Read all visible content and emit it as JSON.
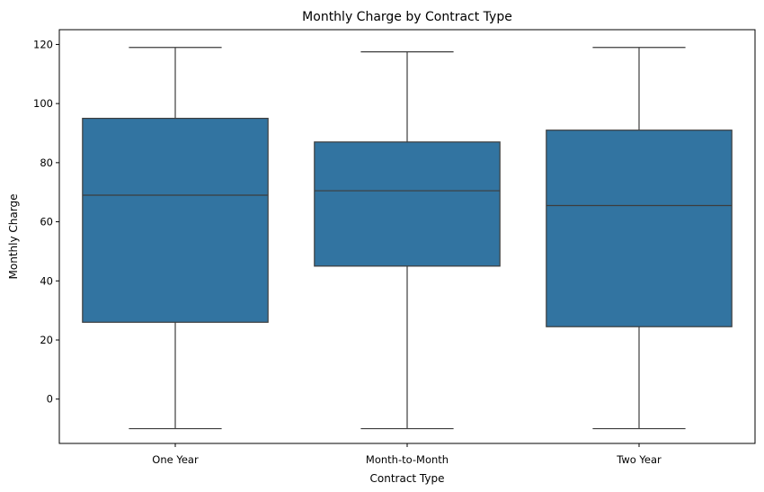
{
  "chart_data": {
    "type": "box",
    "title": "Monthly Charge by Contract Type",
    "xlabel": "Contract Type",
    "ylabel": "Monthly Charge",
    "ylim": [
      -15,
      125
    ],
    "yticks": [
      0,
      20,
      40,
      60,
      80,
      100,
      120
    ],
    "grid": false,
    "color": "#3274a1",
    "line_color": "#3d3d3d",
    "categories": [
      "One Year",
      "Month-to-Month",
      "Two Year"
    ],
    "boxes": [
      {
        "category": "One Year",
        "min": -10,
        "q1": 26,
        "median": 69,
        "q3": 95,
        "max": 119
      },
      {
        "category": "Month-to-Month",
        "min": -10,
        "q1": 45,
        "median": 70.5,
        "q3": 87,
        "max": 117.5
      },
      {
        "category": "Two Year",
        "min": -10,
        "q1": 24.5,
        "median": 65.5,
        "q3": 91,
        "max": 119
      }
    ]
  }
}
